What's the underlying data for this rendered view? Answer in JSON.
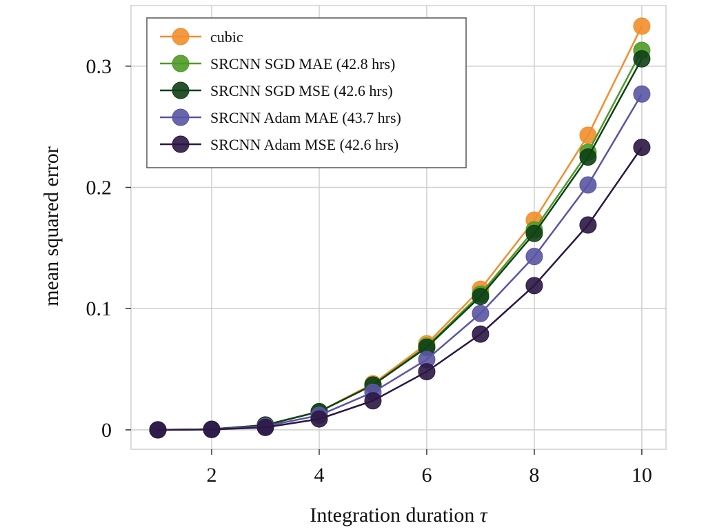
{
  "chart_data": {
    "type": "line",
    "title": "",
    "xlabel": "Integration duration",
    "xlabel_symbol": "τ",
    "ylabel": "mean squared error",
    "x": [
      1,
      2,
      3,
      4,
      5,
      6,
      7,
      8,
      9,
      10
    ],
    "xlim": [
      0.5,
      10.45
    ],
    "ylim": [
      -0.016,
      0.35
    ],
    "xticks": [
      2,
      4,
      6,
      8,
      10
    ],
    "xtick_labels": [
      "2",
      "4",
      "6",
      "8",
      "10"
    ],
    "yticks": [
      0,
      0.1,
      0.2,
      0.3
    ],
    "ytick_labels": [
      "0",
      "0.1",
      "0.2",
      "0.3"
    ],
    "grid": true,
    "legend_position": "top-left",
    "series": [
      {
        "name": "cubic",
        "color": "#f28e2b",
        "values": [
          0.0,
          0.0005,
          0.004,
          0.015,
          0.038,
          0.071,
          0.116,
          0.173,
          0.243,
          0.333
        ]
      },
      {
        "name": "SRCNN SGD MAE (42.8 hrs)",
        "color": "#4e9a27",
        "values": [
          0.0,
          0.0005,
          0.004,
          0.015,
          0.037,
          0.069,
          0.112,
          0.165,
          0.229,
          0.313
        ]
      },
      {
        "name": "SRCNN SGD MSE (42.6 hrs)",
        "color": "#0f4016",
        "values": [
          0.0,
          0.0005,
          0.004,
          0.015,
          0.037,
          0.068,
          0.11,
          0.162,
          0.225,
          0.306
        ]
      },
      {
        "name": "SRCNN Adam MAE (43.7 hrs)",
        "color": "#5a55a3",
        "values": [
          0.0,
          0.0004,
          0.003,
          0.012,
          0.031,
          0.058,
          0.096,
          0.143,
          0.202,
          0.277
        ]
      },
      {
        "name": "SRCNN Adam MSE (42.6 hrs)",
        "color": "#2b1744",
        "values": [
          0.0,
          0.0003,
          0.002,
          0.009,
          0.024,
          0.048,
          0.079,
          0.119,
          0.169,
          0.233
        ]
      }
    ]
  }
}
